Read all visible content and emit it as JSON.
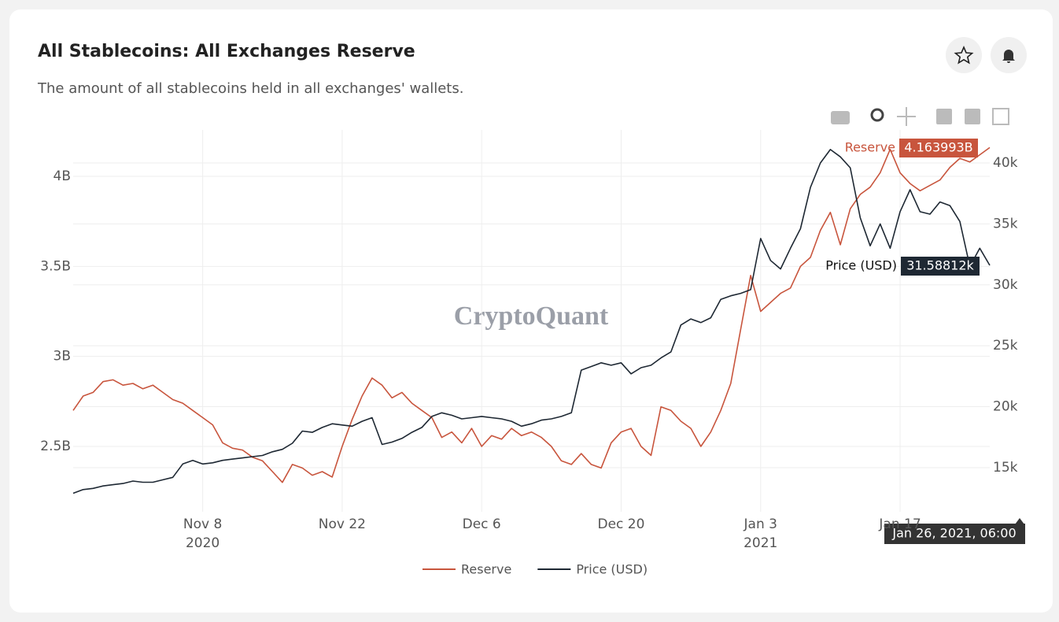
{
  "chart_data": {
    "type": "line",
    "title": "All Stablecoins: All Exchanges Reserve",
    "subtitle": "The amount of all stablecoins held in all exchanges' wallets.",
    "watermark": "CryptoQuant",
    "x": [
      "2020-10-26",
      "2020-10-27",
      "2020-10-28",
      "2020-10-29",
      "2020-10-30",
      "2020-10-31",
      "2020-11-01",
      "2020-11-02",
      "2020-11-03",
      "2020-11-04",
      "2020-11-05",
      "2020-11-06",
      "2020-11-07",
      "2020-11-08",
      "2020-11-09",
      "2020-11-10",
      "2020-11-11",
      "2020-11-12",
      "2020-11-13",
      "2020-11-14",
      "2020-11-15",
      "2020-11-16",
      "2020-11-17",
      "2020-11-18",
      "2020-11-19",
      "2020-11-20",
      "2020-11-21",
      "2020-11-22",
      "2020-11-23",
      "2020-11-24",
      "2020-11-25",
      "2020-11-26",
      "2020-11-27",
      "2020-11-28",
      "2020-11-29",
      "2020-11-30",
      "2020-12-01",
      "2020-12-02",
      "2020-12-03",
      "2020-12-04",
      "2020-12-05",
      "2020-12-06",
      "2020-12-07",
      "2020-12-08",
      "2020-12-09",
      "2020-12-10",
      "2020-12-11",
      "2020-12-12",
      "2020-12-13",
      "2020-12-14",
      "2020-12-15",
      "2020-12-16",
      "2020-12-17",
      "2020-12-18",
      "2020-12-19",
      "2020-12-20",
      "2020-12-21",
      "2020-12-22",
      "2020-12-23",
      "2020-12-24",
      "2020-12-25",
      "2020-12-26",
      "2020-12-27",
      "2020-12-28",
      "2020-12-29",
      "2020-12-30",
      "2020-12-31",
      "2021-01-01",
      "2021-01-02",
      "2021-01-03",
      "2021-01-04",
      "2021-01-05",
      "2021-01-06",
      "2021-01-07",
      "2021-01-08",
      "2021-01-09",
      "2021-01-10",
      "2021-01-11",
      "2021-01-12",
      "2021-01-13",
      "2021-01-14",
      "2021-01-15",
      "2021-01-16",
      "2021-01-17",
      "2021-01-18",
      "2021-01-19",
      "2021-01-20",
      "2021-01-21",
      "2021-01-22",
      "2021-01-23",
      "2021-01-24",
      "2021-01-25",
      "2021-01-26"
    ],
    "series": [
      {
        "name": "Reserve",
        "color": "#c8553d",
        "values": [
          2.7,
          2.78,
          2.8,
          2.86,
          2.87,
          2.84,
          2.85,
          2.82,
          2.84,
          2.8,
          2.76,
          2.74,
          2.7,
          2.66,
          2.62,
          2.52,
          2.49,
          2.48,
          2.44,
          2.42,
          2.36,
          2.3,
          2.4,
          2.38,
          2.34,
          2.36,
          2.33,
          2.5,
          2.65,
          2.78,
          2.88,
          2.84,
          2.77,
          2.8,
          2.74,
          2.7,
          2.66,
          2.55,
          2.58,
          2.52,
          2.6,
          2.5,
          2.56,
          2.54,
          2.6,
          2.56,
          2.58,
          2.55,
          2.5,
          2.42,
          2.4,
          2.46,
          2.4,
          2.38,
          2.52,
          2.58,
          2.6,
          2.5,
          2.45,
          2.72,
          2.7,
          2.64,
          2.6,
          2.5,
          2.58,
          2.7,
          2.85,
          3.15,
          3.45,
          3.25,
          3.3,
          3.35,
          3.38,
          3.5,
          3.55,
          3.7,
          3.8,
          3.62,
          3.82,
          3.9,
          3.94,
          4.02,
          4.15,
          4.02,
          3.96,
          3.92,
          3.95,
          3.98,
          4.05,
          4.1,
          4.08,
          4.12,
          4.16
        ]
      },
      {
        "name": "Price (USD)",
        "color": "#1e2833",
        "axis": "y2",
        "values": [
          12900,
          13200,
          13300,
          13500,
          13600,
          13700,
          13900,
          13800,
          13800,
          14000,
          14200,
          15300,
          15600,
          15300,
          15400,
          15600,
          15700,
          15800,
          15900,
          16000,
          16300,
          16500,
          17000,
          18000,
          17900,
          18300,
          18600,
          18500,
          18400,
          18800,
          19100,
          16900,
          17100,
          17400,
          17900,
          18300,
          19200,
          19500,
          19300,
          19000,
          19100,
          19200,
          19100,
          19000,
          18800,
          18400,
          18600,
          18900,
          19000,
          19200,
          19500,
          23000,
          23300,
          23600,
          23400,
          23600,
          22700,
          23200,
          23400,
          24000,
          24500,
          26700,
          27200,
          26900,
          27300,
          28800,
          29100,
          29300,
          29600,
          33800,
          32000,
          31300,
          33000,
          34600,
          38000,
          40000,
          41100,
          40500,
          39600,
          35500,
          33200,
          35000,
          33000,
          36000,
          37800,
          36000,
          35800,
          36800,
          36500,
          35200,
          31500,
          33000,
          31600
        ]
      }
    ],
    "xlim": [
      "2020-10-26",
      "2021-01-26"
    ],
    "xticks": [
      {
        "value": "2020-11-08",
        "label": "Nov 8\n2020"
      },
      {
        "value": "2020-11-22",
        "label": "Nov 22"
      },
      {
        "value": "2020-12-06",
        "label": "Dec 6"
      },
      {
        "value": "2020-12-20",
        "label": "Dec 20"
      },
      {
        "value": "2021-01-03",
        "label": "Jan 3\n2021"
      },
      {
        "value": "2021-01-17",
        "label": "Jan 17"
      }
    ],
    "ylim": [
      2.137,
      4.258
    ],
    "yticks": [
      {
        "value": 2.5,
        "label": "2.5B"
      },
      {
        "value": 3,
        "label": "3B"
      },
      {
        "value": 3.5,
        "label": "3.5B"
      },
      {
        "value": 4,
        "label": "4B"
      }
    ],
    "y2lim": [
      11380,
      42710
    ],
    "y2ticks": [
      {
        "value": 15000,
        "label": "15k"
      },
      {
        "value": 20000,
        "label": "20k"
      },
      {
        "value": 25000,
        "label": "25k"
      },
      {
        "value": 30000,
        "label": "30k"
      },
      {
        "value": 35000,
        "label": "35k"
      },
      {
        "value": 40000,
        "label": "40k"
      }
    ],
    "grid": true,
    "legend": "bottom",
    "hover": {
      "date": "Jan 26, 2021, 06:00",
      "labels": [
        {
          "name": "Reserve",
          "value": "4.163993B"
        },
        {
          "name": "Price (USD)",
          "value": "31.58812k"
        }
      ]
    }
  }
}
